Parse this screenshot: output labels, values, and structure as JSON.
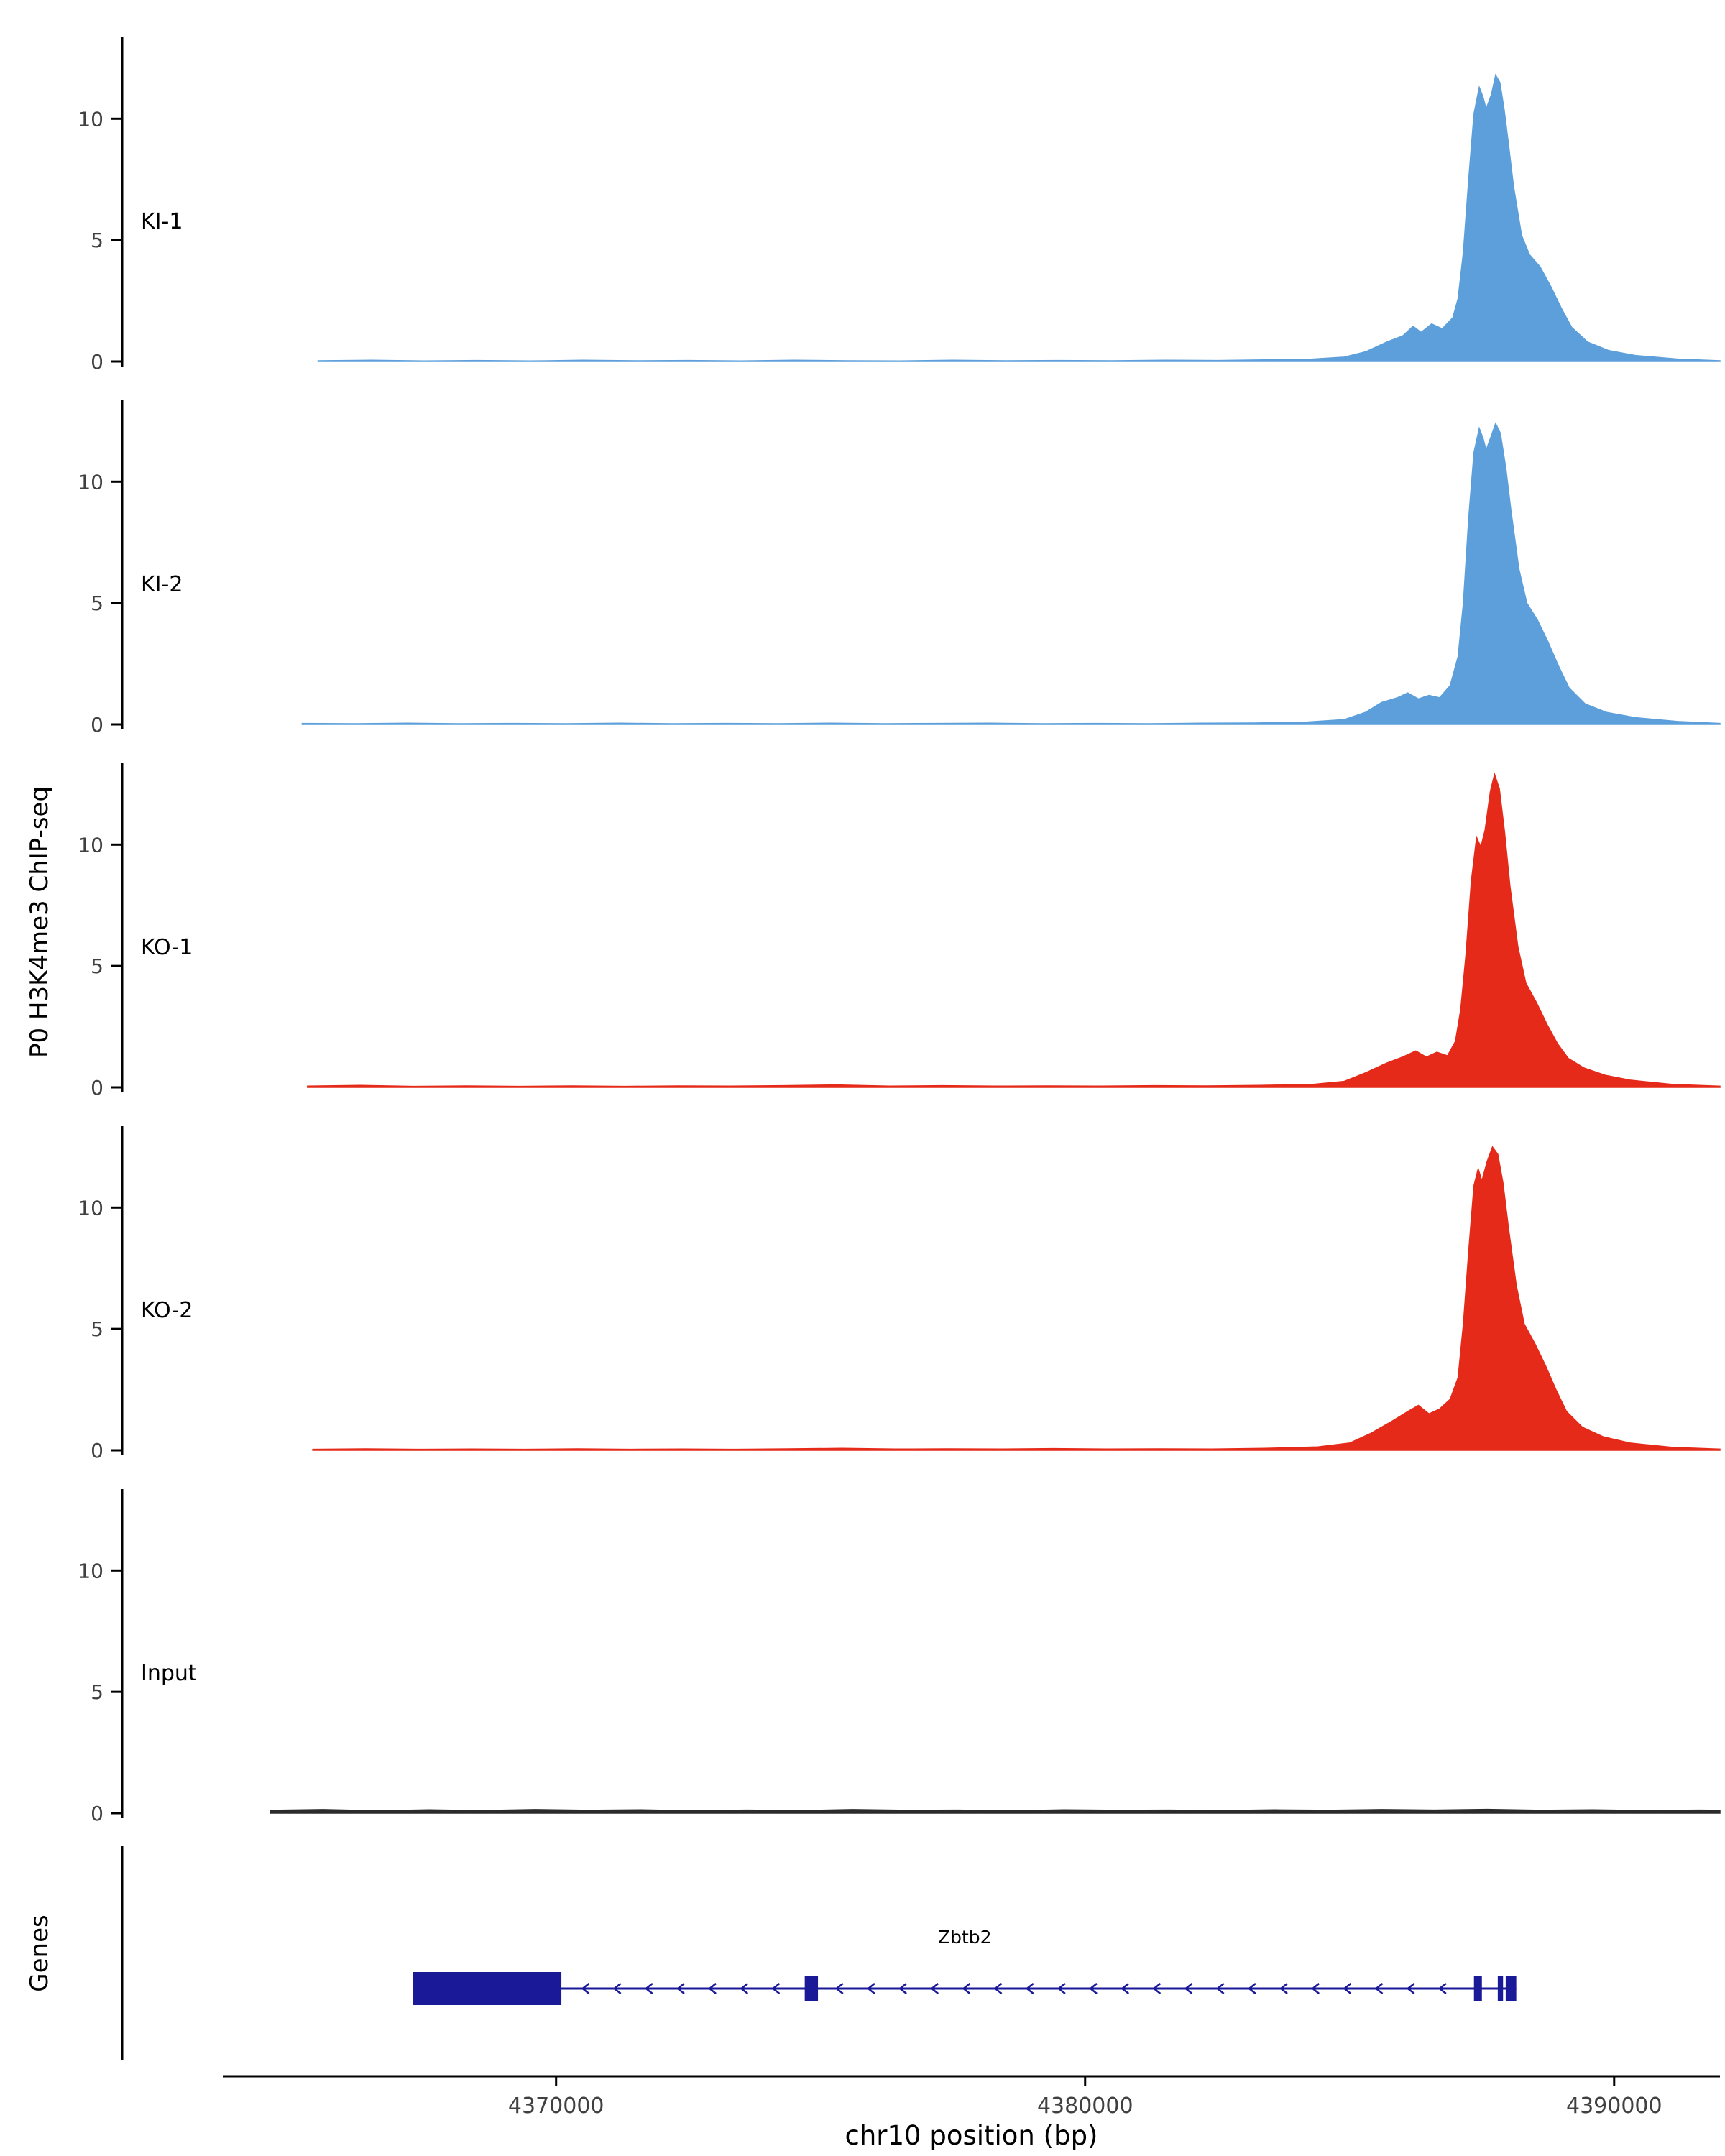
{
  "chart_data": {
    "type": "area",
    "title": "",
    "ylabel": "P0 H3K4me3 ChIP-seq",
    "xlabel": "chr10 position (bp)",
    "xlim": [
      4363700,
      4392000
    ],
    "x_ticks": [
      4370000,
      4380000,
      4390000
    ],
    "x_tick_labels": [
      "4370000",
      "4380000",
      "4390000"
    ],
    "track_ylim": [
      0,
      13
    ],
    "track_yticks": [
      0,
      5,
      10
    ],
    "grid": false,
    "legend": "none",
    "tracks": [
      {
        "label": "KI-1",
        "color": "#5C9FDB",
        "points": [
          [
            4365500,
            0.03
          ],
          [
            4366500,
            0.05
          ],
          [
            4367500,
            0.02
          ],
          [
            4368500,
            0.04
          ],
          [
            4369500,
            0.02
          ],
          [
            4370500,
            0.05
          ],
          [
            4371500,
            0.03
          ],
          [
            4372500,
            0.04
          ],
          [
            4373500,
            0.02
          ],
          [
            4374500,
            0.05
          ],
          [
            4375500,
            0.03
          ],
          [
            4376500,
            0.02
          ],
          [
            4377500,
            0.05
          ],
          [
            4378500,
            0.03
          ],
          [
            4379500,
            0.04
          ],
          [
            4380500,
            0.03
          ],
          [
            4381500,
            0.05
          ],
          [
            4382500,
            0.04
          ],
          [
            4383500,
            0.07
          ],
          [
            4384300,
            0.1
          ],
          [
            4384900,
            0.18
          ],
          [
            4385300,
            0.4
          ],
          [
            4385700,
            0.8
          ],
          [
            4386000,
            1.05
          ],
          [
            4386200,
            1.45
          ],
          [
            4386350,
            1.2
          ],
          [
            4386550,
            1.55
          ],
          [
            4386750,
            1.35
          ],
          [
            4386950,
            1.8
          ],
          [
            4387050,
            2.6
          ],
          [
            4387150,
            4.5
          ],
          [
            4387250,
            7.5
          ],
          [
            4387350,
            10.2
          ],
          [
            4387450,
            11.3
          ],
          [
            4387520,
            10.9
          ],
          [
            4387580,
            10.4
          ],
          [
            4387680,
            11.0
          ],
          [
            4387760,
            11.8
          ],
          [
            4387840,
            11.5
          ],
          [
            4387920,
            10.4
          ],
          [
            4388000,
            9.0
          ],
          [
            4388100,
            7.2
          ],
          [
            4388250,
            5.2
          ],
          [
            4388400,
            4.4
          ],
          [
            4388600,
            3.9
          ],
          [
            4388800,
            3.1
          ],
          [
            4389000,
            2.2
          ],
          [
            4389200,
            1.4
          ],
          [
            4389500,
            0.8
          ],
          [
            4389900,
            0.45
          ],
          [
            4390400,
            0.25
          ],
          [
            4391200,
            0.1
          ],
          [
            4392000,
            0.03
          ]
        ]
      },
      {
        "label": "KI-2",
        "color": "#5C9FDB",
        "points": [
          [
            4365200,
            0.04
          ],
          [
            4366200,
            0.03
          ],
          [
            4367200,
            0.05
          ],
          [
            4368200,
            0.03
          ],
          [
            4369200,
            0.04
          ],
          [
            4370200,
            0.03
          ],
          [
            4371200,
            0.05
          ],
          [
            4372200,
            0.03
          ],
          [
            4373200,
            0.04
          ],
          [
            4374200,
            0.03
          ],
          [
            4375200,
            0.05
          ],
          [
            4376200,
            0.03
          ],
          [
            4377200,
            0.04
          ],
          [
            4378200,
            0.05
          ],
          [
            4379200,
            0.03
          ],
          [
            4380200,
            0.04
          ],
          [
            4381200,
            0.03
          ],
          [
            4382200,
            0.05
          ],
          [
            4383200,
            0.06
          ],
          [
            4384200,
            0.1
          ],
          [
            4384900,
            0.2
          ],
          [
            4385300,
            0.5
          ],
          [
            4385600,
            0.9
          ],
          [
            4385900,
            1.1
          ],
          [
            4386100,
            1.3
          ],
          [
            4386300,
            1.05
          ],
          [
            4386500,
            1.2
          ],
          [
            4386700,
            1.1
          ],
          [
            4386900,
            1.6
          ],
          [
            4387050,
            2.8
          ],
          [
            4387150,
            5.0
          ],
          [
            4387250,
            8.5
          ],
          [
            4387350,
            11.2
          ],
          [
            4387450,
            12.2
          ],
          [
            4387520,
            11.8
          ],
          [
            4387580,
            11.3
          ],
          [
            4387680,
            11.9
          ],
          [
            4387760,
            12.4
          ],
          [
            4387850,
            12.0
          ],
          [
            4387950,
            10.6
          ],
          [
            4388050,
            8.8
          ],
          [
            4388200,
            6.4
          ],
          [
            4388350,
            5.0
          ],
          [
            4388550,
            4.3
          ],
          [
            4388750,
            3.4
          ],
          [
            4388950,
            2.4
          ],
          [
            4389150,
            1.5
          ],
          [
            4389450,
            0.85
          ],
          [
            4389850,
            0.5
          ],
          [
            4390400,
            0.28
          ],
          [
            4391200,
            0.12
          ],
          [
            4392000,
            0.04
          ]
        ]
      },
      {
        "label": "KO-1",
        "color": "#E52A1A",
        "points": [
          [
            4365300,
            0.05
          ],
          [
            4366300,
            0.08
          ],
          [
            4367300,
            0.04
          ],
          [
            4368300,
            0.06
          ],
          [
            4369300,
            0.04
          ],
          [
            4370300,
            0.06
          ],
          [
            4371300,
            0.04
          ],
          [
            4372300,
            0.06
          ],
          [
            4373300,
            0.05
          ],
          [
            4374300,
            0.07
          ],
          [
            4375300,
            0.1
          ],
          [
            4376300,
            0.05
          ],
          [
            4377300,
            0.07
          ],
          [
            4378300,
            0.05
          ],
          [
            4379300,
            0.06
          ],
          [
            4380300,
            0.05
          ],
          [
            4381300,
            0.07
          ],
          [
            4382300,
            0.06
          ],
          [
            4383300,
            0.08
          ],
          [
            4384300,
            0.12
          ],
          [
            4384900,
            0.25
          ],
          [
            4385300,
            0.6
          ],
          [
            4385700,
            1.0
          ],
          [
            4386000,
            1.25
          ],
          [
            4386250,
            1.5
          ],
          [
            4386450,
            1.25
          ],
          [
            4386650,
            1.45
          ],
          [
            4386850,
            1.3
          ],
          [
            4387000,
            1.9
          ],
          [
            4387100,
            3.2
          ],
          [
            4387200,
            5.5
          ],
          [
            4387300,
            8.5
          ],
          [
            4387400,
            10.3
          ],
          [
            4387480,
            9.9
          ],
          [
            4387560,
            10.6
          ],
          [
            4387660,
            12.2
          ],
          [
            4387740,
            12.9
          ],
          [
            4387830,
            12.3
          ],
          [
            4387930,
            10.5
          ],
          [
            4388030,
            8.3
          ],
          [
            4388180,
            5.8
          ],
          [
            4388330,
            4.3
          ],
          [
            4388530,
            3.5
          ],
          [
            4388730,
            2.6
          ],
          [
            4388930,
            1.8
          ],
          [
            4389130,
            1.2
          ],
          [
            4389430,
            0.8
          ],
          [
            4389830,
            0.5
          ],
          [
            4390300,
            0.3
          ],
          [
            4391100,
            0.12
          ],
          [
            4392000,
            0.05
          ]
        ]
      },
      {
        "label": "KO-2",
        "color": "#E52A1A",
        "points": [
          [
            4365400,
            0.04
          ],
          [
            4366400,
            0.06
          ],
          [
            4367400,
            0.04
          ],
          [
            4368400,
            0.05
          ],
          [
            4369400,
            0.04
          ],
          [
            4370400,
            0.06
          ],
          [
            4371400,
            0.04
          ],
          [
            4372400,
            0.05
          ],
          [
            4373400,
            0.04
          ],
          [
            4374400,
            0.06
          ],
          [
            4375400,
            0.08
          ],
          [
            4376400,
            0.05
          ],
          [
            4377400,
            0.06
          ],
          [
            4378400,
            0.05
          ],
          [
            4379400,
            0.07
          ],
          [
            4380400,
            0.05
          ],
          [
            4381400,
            0.06
          ],
          [
            4382400,
            0.05
          ],
          [
            4383400,
            0.08
          ],
          [
            4384400,
            0.14
          ],
          [
            4385000,
            0.3
          ],
          [
            4385400,
            0.7
          ],
          [
            4385800,
            1.2
          ],
          [
            4386100,
            1.6
          ],
          [
            4386300,
            1.85
          ],
          [
            4386500,
            1.5
          ],
          [
            4386700,
            1.7
          ],
          [
            4386900,
            2.1
          ],
          [
            4387050,
            3.0
          ],
          [
            4387150,
            5.2
          ],
          [
            4387250,
            8.2
          ],
          [
            4387350,
            10.9
          ],
          [
            4387430,
            11.6
          ],
          [
            4387500,
            11.1
          ],
          [
            4387600,
            11.9
          ],
          [
            4387700,
            12.5
          ],
          [
            4387800,
            12.2
          ],
          [
            4387900,
            11.0
          ],
          [
            4388000,
            9.2
          ],
          [
            4388150,
            6.8
          ],
          [
            4388300,
            5.2
          ],
          [
            4388500,
            4.4
          ],
          [
            4388700,
            3.5
          ],
          [
            4388900,
            2.5
          ],
          [
            4389100,
            1.6
          ],
          [
            4389400,
            0.95
          ],
          [
            4389800,
            0.55
          ],
          [
            4390300,
            0.3
          ],
          [
            4391100,
            0.12
          ],
          [
            4392000,
            0.05
          ]
        ]
      },
      {
        "label": "Input",
        "color": "#2B2B2B",
        "points": [
          [
            4364600,
            0.12
          ],
          [
            4365600,
            0.15
          ],
          [
            4366600,
            0.1
          ],
          [
            4367600,
            0.14
          ],
          [
            4368600,
            0.11
          ],
          [
            4369600,
            0.15
          ],
          [
            4370600,
            0.12
          ],
          [
            4371600,
            0.14
          ],
          [
            4372600,
            0.1
          ],
          [
            4373600,
            0.13
          ],
          [
            4374600,
            0.11
          ],
          [
            4375600,
            0.15
          ],
          [
            4376600,
            0.12
          ],
          [
            4377600,
            0.13
          ],
          [
            4378600,
            0.1
          ],
          [
            4379600,
            0.14
          ],
          [
            4380600,
            0.12
          ],
          [
            4381600,
            0.13
          ],
          [
            4382600,
            0.11
          ],
          [
            4383600,
            0.14
          ],
          [
            4384600,
            0.12
          ],
          [
            4385600,
            0.15
          ],
          [
            4386600,
            0.13
          ],
          [
            4387600,
            0.16
          ],
          [
            4388600,
            0.12
          ],
          [
            4389600,
            0.14
          ],
          [
            4390600,
            0.11
          ],
          [
            4391600,
            0.13
          ],
          [
            4392000,
            0.12
          ]
        ]
      }
    ],
    "genes_panel": {
      "label": "Genes",
      "gene": {
        "name": "Zbtb2",
        "color": "#1A1A99",
        "start": 4367300,
        "end": 4388150,
        "strand": "-",
        "utr_box": [
          4367300,
          4370100
        ],
        "exons": [
          [
            4374700,
            4374950
          ],
          [
            4387350,
            4387500
          ],
          [
            4387800,
            4387900
          ],
          [
            4387950,
            4388150
          ]
        ],
        "arrows": {
          "from": 4370500,
          "to": 4387200,
          "step": 600
        }
      }
    },
    "axis_color": "#000000",
    "tick_label_color": "#404040"
  }
}
